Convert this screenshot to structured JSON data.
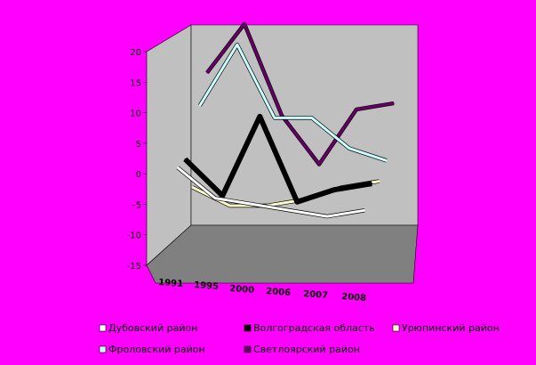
{
  "chart_data": {
    "type": "line",
    "title": "",
    "xlabel": "",
    "ylabel": "",
    "categories": [
      "1991",
      "1995",
      "2000",
      "2006",
      "2007",
      "2008"
    ],
    "ylim": [
      -15,
      20
    ],
    "yticks": [
      20,
      15,
      10,
      5,
      0,
      -5,
      -10,
      -15
    ],
    "grid": false,
    "legend_position": "bottom",
    "series": [
      {
        "name": "Дубовский район",
        "color": "#ffffff",
        "values": [
          1,
          -4,
          -5,
          -6,
          -7,
          -6
        ]
      },
      {
        "name": "Волгоградская область",
        "color": "#000000",
        "values": [
          1,
          -5,
          8,
          -6,
          -4,
          -3
        ]
      },
      {
        "name": "Урюпинский район",
        "color": "#ffffcc",
        "values": [
          -5,
          -8,
          -8,
          -7,
          -5,
          -4
        ]
      },
      {
        "name": "Фроловский район",
        "color": "#ccffff",
        "values": [
          7,
          17,
          5,
          5,
          0,
          -2
        ]
      },
      {
        "name": "Светлоярский район",
        "color": "#660066",
        "values": [
          11,
          19,
          4,
          -4,
          5,
          6
        ]
      }
    ]
  }
}
